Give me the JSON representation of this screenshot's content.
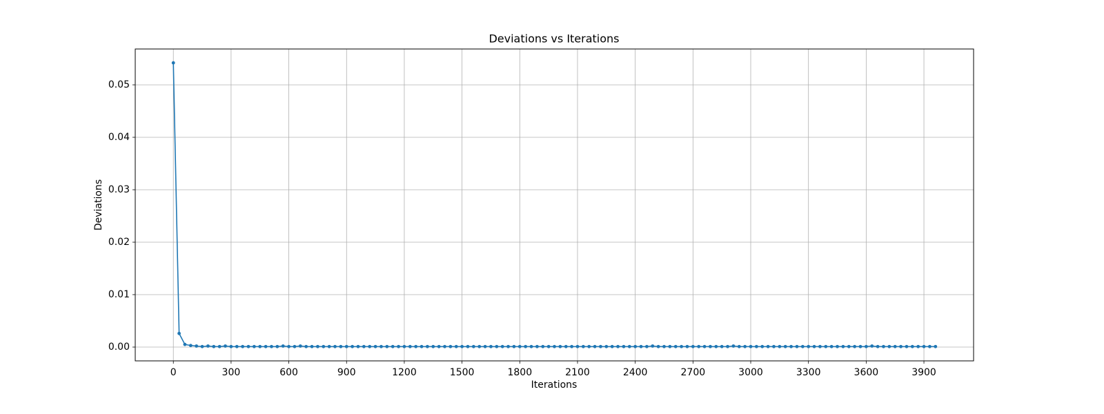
{
  "chart_data": {
    "type": "line",
    "title": "Deviations vs Iterations",
    "x_label": "Iterations",
    "y_label": "Deviations",
    "x": [
      0,
      30,
      60,
      90,
      120,
      150,
      180,
      210,
      240,
      270,
      300,
      330,
      360,
      390,
      420,
      450,
      480,
      510,
      540,
      570,
      600,
      630,
      660,
      690,
      720,
      750,
      780,
      810,
      840,
      870,
      900,
      930,
      960,
      990,
      1020,
      1050,
      1080,
      1110,
      1140,
      1170,
      1200,
      1230,
      1260,
      1290,
      1320,
      1350,
      1380,
      1410,
      1440,
      1470,
      1500,
      1530,
      1560,
      1590,
      1620,
      1650,
      1680,
      1710,
      1740,
      1770,
      1800,
      1830,
      1860,
      1890,
      1920,
      1950,
      1980,
      2010,
      2040,
      2070,
      2100,
      2130,
      2160,
      2190,
      2220,
      2250,
      2280,
      2310,
      2340,
      2370,
      2400,
      2430,
      2460,
      2490,
      2520,
      2550,
      2580,
      2610,
      2640,
      2670,
      2700,
      2730,
      2760,
      2790,
      2820,
      2850,
      2880,
      2910,
      2940,
      2970,
      3000,
      3030,
      3060,
      3090,
      3120,
      3150,
      3180,
      3210,
      3240,
      3270,
      3300,
      3330,
      3360,
      3390,
      3420,
      3450,
      3480,
      3510,
      3540,
      3570,
      3600,
      3630,
      3660,
      3690,
      3720,
      3750,
      3780,
      3810,
      3840,
      3870,
      3900,
      3930,
      3960
    ],
    "series": [
      {
        "color": "#1f77b4",
        "values": [
          0.0542,
          0.0026,
          0.0005,
          0.0003,
          0.0002,
          0.0001,
          0.0002,
          0.0001,
          0.0001,
          0.0002,
          0.0001,
          0.0001,
          0.0001,
          0.0001,
          0.0001,
          0.0001,
          0.0001,
          0.0001,
          0.0001,
          0.0002,
          0.0001,
          0.0001,
          0.0002,
          0.0001,
          0.0001,
          0.0001,
          0.0001,
          0.0001,
          0.0001,
          0.0001,
          0.0001,
          0.0001,
          0.0001,
          0.0001,
          0.0001,
          0.0001,
          0.0001,
          0.0001,
          0.0001,
          0.0001,
          0.0001,
          0.0001,
          0.0001,
          0.0001,
          0.0001,
          0.0001,
          0.0001,
          0.0001,
          0.0001,
          0.0001,
          0.0001,
          0.0001,
          0.0001,
          0.0001,
          0.0001,
          0.0001,
          0.0001,
          0.0001,
          0.0001,
          0.0001,
          0.0001,
          0.0001,
          0.0001,
          0.0001,
          0.0001,
          0.0001,
          0.0001,
          0.0001,
          0.0001,
          0.0001,
          0.0001,
          0.0001,
          0.0001,
          0.0001,
          0.0001,
          0.0001,
          0.0001,
          0.0001,
          0.0001,
          0.0001,
          0.0001,
          0.0001,
          0.0001,
          0.0002,
          0.0001,
          0.0001,
          0.0001,
          0.0001,
          0.0001,
          0.0001,
          0.0001,
          0.0001,
          0.0001,
          0.0001,
          0.0001,
          0.0001,
          0.0001,
          0.0002,
          0.0001,
          0.0001,
          0.0001,
          0.0001,
          0.0001,
          0.0001,
          0.0001,
          0.0001,
          0.0001,
          0.0001,
          0.0001,
          0.0001,
          0.0001,
          0.0001,
          0.0001,
          0.0001,
          0.0001,
          0.0001,
          0.0001,
          0.0001,
          0.0001,
          0.0001,
          0.0001,
          0.0002,
          0.0001,
          0.0001,
          0.0001,
          0.0001,
          0.0001,
          0.0001,
          0.0001,
          0.0001,
          0.0001,
          0.0001,
          0.0001
        ]
      }
    ],
    "xlim": [
      -198,
      4158
    ],
    "ylim": [
      -0.00263,
      0.05684
    ],
    "xticks": [
      0,
      300,
      600,
      900,
      1200,
      1500,
      1800,
      2100,
      2400,
      2700,
      3000,
      3300,
      3600,
      3900
    ],
    "yticks": [
      {
        "value": 0,
        "label": "0.00"
      },
      {
        "value": 0.01,
        "label": "0.01"
      },
      {
        "value": 0.02,
        "label": "0.02"
      },
      {
        "value": 0.03,
        "label": "0.03"
      },
      {
        "value": 0.04,
        "label": "0.04"
      },
      {
        "value": 0.05,
        "label": "0.05"
      }
    ],
    "grid": true
  }
}
